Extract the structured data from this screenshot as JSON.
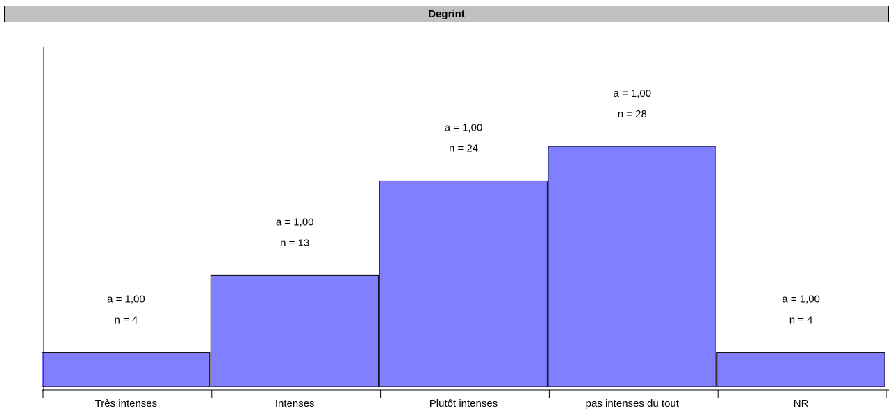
{
  "chart_data": {
    "type": "bar",
    "title": "Degrint",
    "categories": [
      "Très intenses",
      "Intenses",
      "Plutôt intenses",
      "pas intenses du tout",
      "NR"
    ],
    "values": [
      4,
      13,
      24,
      28,
      4
    ],
    "annotations": {
      "a_label": "a = 1,00",
      "n_labels": [
        "n = 4",
        "n = 13",
        "n = 24",
        "n = 28",
        "n = 4"
      ]
    },
    "bar_color": "#8080ff",
    "grid": false,
    "legend": "none",
    "xlabel": "",
    "ylabel": ""
  }
}
